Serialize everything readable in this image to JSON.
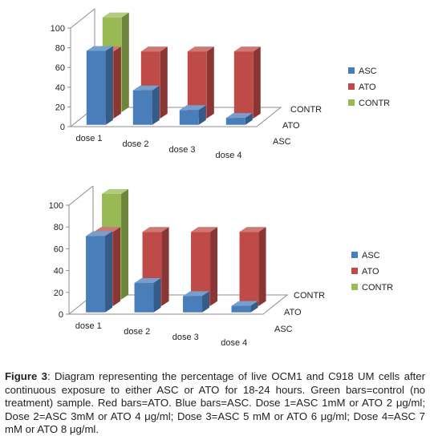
{
  "colors": {
    "ASC": "#4a7ebb",
    "ATO": "#be4b48",
    "CONTR": "#98b954",
    "axis": "#8c8c8c",
    "text": "#222222"
  },
  "chart_data": [
    {
      "type": "bar",
      "subtype": "3d-clustered",
      "categories": [
        "dose 1",
        "dose 2",
        "dose 3",
        "dose 4"
      ],
      "depth_labels": [
        "CONTR",
        "ATO",
        "ASC"
      ],
      "yticks": [
        "0",
        "20",
        "40",
        "60",
        "80",
        "100"
      ],
      "ylim": [
        0,
        100
      ],
      "grid": false,
      "legend_position": "right",
      "series": [
        {
          "name": "ASC",
          "values": [
            75,
            35,
            15,
            7
          ]
        },
        {
          "name": "ATO",
          "values": [
            68,
            68,
            68,
            68
          ]
        },
        {
          "name": "CONTR",
          "values": [
            96,
            null,
            null,
            null
          ]
        }
      ]
    },
    {
      "type": "bar",
      "subtype": "3d-clustered",
      "categories": [
        "dose 1",
        "dose 2",
        "dose 3",
        "dose 4"
      ],
      "depth_labels": [
        "CONTR",
        "ATO",
        "ASC"
      ],
      "yticks": [
        "0",
        "20",
        "40",
        "60",
        "80",
        "100"
      ],
      "ylim": [
        0,
        100
      ],
      "grid": false,
      "legend_position": "right",
      "series": [
        {
          "name": "ASC",
          "values": [
            70,
            27,
            15,
            6
          ]
        },
        {
          "name": "ATO",
          "values": [
            68,
            68,
            68,
            68
          ]
        },
        {
          "name": "CONTR",
          "values": [
            97,
            null,
            null,
            null
          ]
        }
      ]
    }
  ],
  "caption": {
    "label": "Figure 3",
    "text": ": Diagram representing the percentage of live OCM1 and C918 UM cells after continuous exposure to either ASC or ATO for 18-24 hours. Green bars=control (no treatment) sample. Red bars=ATO. Blue bars=ASC. Dose 1=ASC 1mM or ATO 2 μg/ml; Dose 2=ASC 3mM or ATO 4 μg/ml; Dose 3=ASC 5 mM or ATO 6 μg/ml; Dose 4=ASC 7 mM or ATO 8 μg/ml."
  }
}
